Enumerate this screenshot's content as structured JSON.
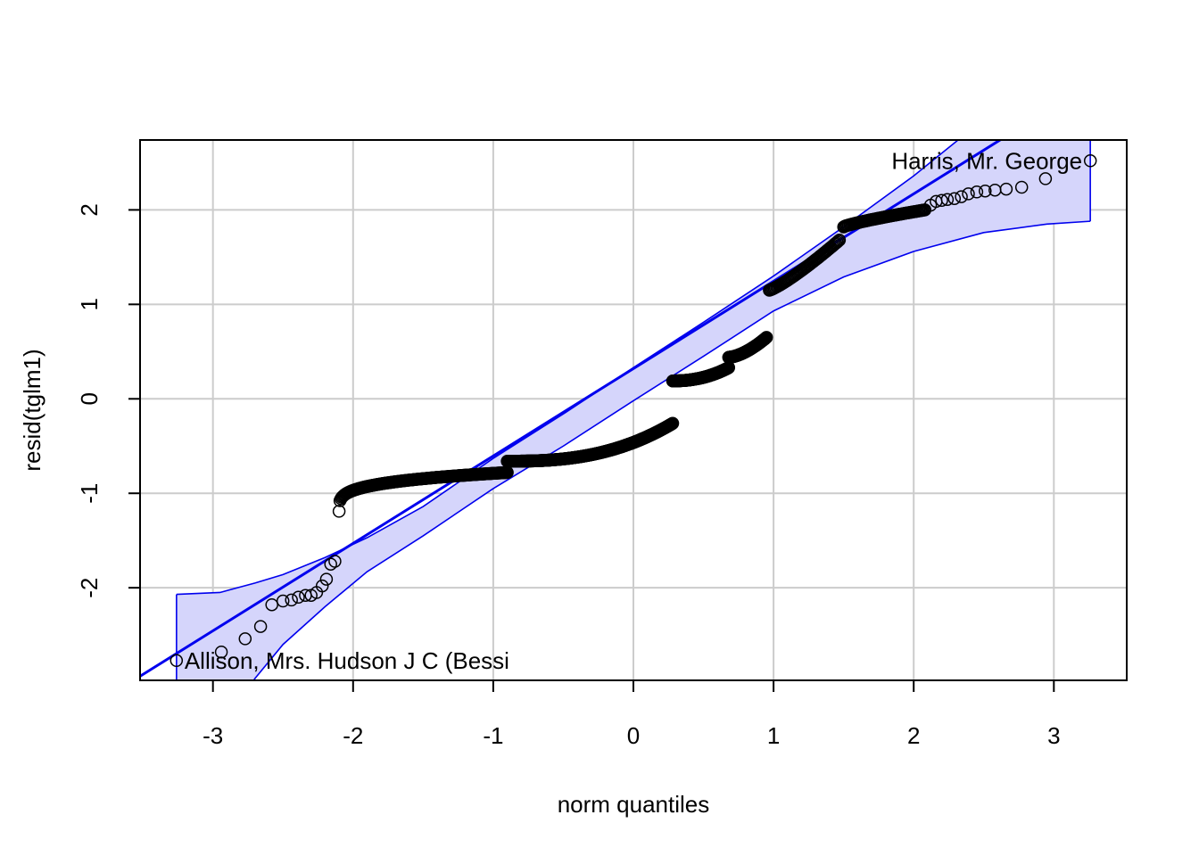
{
  "chart_data": {
    "type": "scatter",
    "plot": "qq",
    "xlabel": "norm quantiles",
    "ylabel": "resid(tglm1)",
    "xlim": [
      -3.52,
      3.52
    ],
    "ylim": [
      -2.98,
      2.74
    ],
    "x_ticks": [
      -3,
      -2,
      -1,
      0,
      1,
      2,
      3
    ],
    "y_ticks": [
      -2,
      -1,
      0,
      1,
      2
    ],
    "grid": true,
    "colors": {
      "points": "#000000",
      "line": "#0000ee",
      "band_fill": "#d5d5fb",
      "band_edge": "#0000ee",
      "grid": "#cccccc"
    },
    "reference_line": {
      "slope": 0.925,
      "intercept": 0.32
    },
    "confidence_band": {
      "x": [
        -3.26,
        -2.95,
        -2.7,
        -2.5,
        -2.2,
        -1.9,
        -1.5,
        -1.0,
        -0.5,
        0.0,
        0.5,
        1.0,
        1.5,
        2.0,
        2.5,
        2.95,
        3.26
      ],
      "upper": [
        -2.07,
        -2.05,
        -1.95,
        -1.86,
        -1.68,
        -1.47,
        -1.14,
        -0.63,
        -0.16,
        0.33,
        0.81,
        1.3,
        1.82,
        2.36,
        2.96,
        3.52,
        3.9
      ],
      "lower": [
        -3.9,
        -3.52,
        -2.96,
        -2.6,
        -2.2,
        -1.83,
        -1.45,
        -0.95,
        -0.5,
        -0.02,
        0.45,
        0.93,
        1.29,
        1.56,
        1.76,
        1.85,
        1.88
      ]
    },
    "series": [
      {
        "points": [
          [
            -3.26,
            -2.77
          ],
          [
            -2.94,
            -2.68
          ],
          [
            -2.77,
            -2.54
          ],
          [
            -2.66,
            -2.41
          ],
          [
            -2.58,
            -2.18
          ],
          [
            -2.5,
            -2.14
          ],
          [
            -2.44,
            -2.13
          ],
          [
            -2.39,
            -2.1
          ],
          [
            -2.34,
            -2.08
          ],
          [
            -2.3,
            -2.08
          ],
          [
            -2.26,
            -2.05
          ],
          [
            -2.22,
            -1.98
          ],
          [
            -2.19,
            -1.91
          ],
          [
            -2.16,
            -1.75
          ],
          [
            -2.13,
            -1.72
          ]
        ]
      }
    ],
    "segments": [
      {
        "x_start": -2.1,
        "x_end": -0.9,
        "y_start": -1.19,
        "y_end": -0.78,
        "n": 180,
        "curve": 0.25
      },
      {
        "x_start": -0.9,
        "x_end": 0.28,
        "y_start": -0.66,
        "y_end": -0.26,
        "n": 330,
        "curve": 2.6
      },
      {
        "x_start": 0.28,
        "x_end": 0.68,
        "y_start": 0.19,
        "y_end": 0.33,
        "n": 110,
        "curve": 2.2
      },
      {
        "x_start": 0.68,
        "x_end": 0.95,
        "y_start": 0.44,
        "y_end": 0.65,
        "n": 70,
        "curve": 1.6
      },
      {
        "x_start": 0.97,
        "x_end": 1.47,
        "y_start": 1.15,
        "y_end": 1.68,
        "n": 60,
        "curve": 1.2
      },
      {
        "x_start": 1.5,
        "x_end": 2.08,
        "y_start": 1.82,
        "y_end": 2.0,
        "n": 70,
        "curve": 0.8
      }
    ],
    "upper_tail_points": [
      [
        2.12,
        2.05
      ],
      [
        2.16,
        2.09
      ],
      [
        2.2,
        2.1
      ],
      [
        2.24,
        2.11
      ],
      [
        2.29,
        2.12
      ],
      [
        2.34,
        2.14
      ],
      [
        2.39,
        2.17
      ],
      [
        2.45,
        2.19
      ],
      [
        2.51,
        2.2
      ],
      [
        2.58,
        2.21
      ],
      [
        2.66,
        2.22
      ],
      [
        2.77,
        2.24
      ],
      [
        2.94,
        2.33
      ],
      [
        3.26,
        2.52
      ]
    ],
    "annotations": [
      {
        "text": "Harris, Mr. George",
        "x": 3.26,
        "y": 2.52,
        "side": "left"
      },
      {
        "text": "Allison, Mrs. Hudson J C (Bessi",
        "x": -3.26,
        "y": -2.77,
        "side": "right"
      }
    ]
  }
}
